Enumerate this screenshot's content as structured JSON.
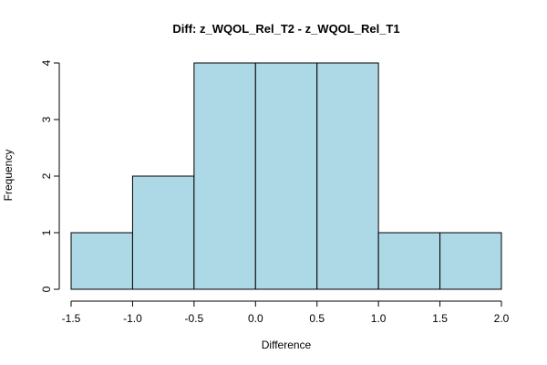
{
  "chart_data": {
    "type": "bar",
    "title": "Diff: z_WQOL_Rel_T2 - z_WQOL_Rel_T1",
    "xlabel": "Difference",
    "ylabel": "Frequency",
    "bin_edges": [
      -1.5,
      -1.0,
      -0.5,
      0.0,
      0.5,
      1.0,
      1.5,
      2.0
    ],
    "values": [
      1,
      2,
      4,
      4,
      4,
      1,
      1
    ],
    "xlim": [
      -1.5,
      2.0
    ],
    "ylim": [
      0,
      4
    ],
    "x_ticks": [
      -1.5,
      -1.0,
      -0.5,
      0.0,
      0.5,
      1.0,
      1.5,
      2.0
    ],
    "x_tick_labels": [
      "-1.5",
      "-1.0",
      "-0.5",
      "0.0",
      "0.5",
      "1.0",
      "1.5",
      "2.0"
    ],
    "y_ticks": [
      0,
      1,
      2,
      3,
      4
    ],
    "y_tick_labels": [
      "0",
      "1",
      "2",
      "3",
      "4"
    ],
    "bar_color": "#add8e6",
    "edge_color": "#000000",
    "grid": false,
    "legend": "none"
  }
}
